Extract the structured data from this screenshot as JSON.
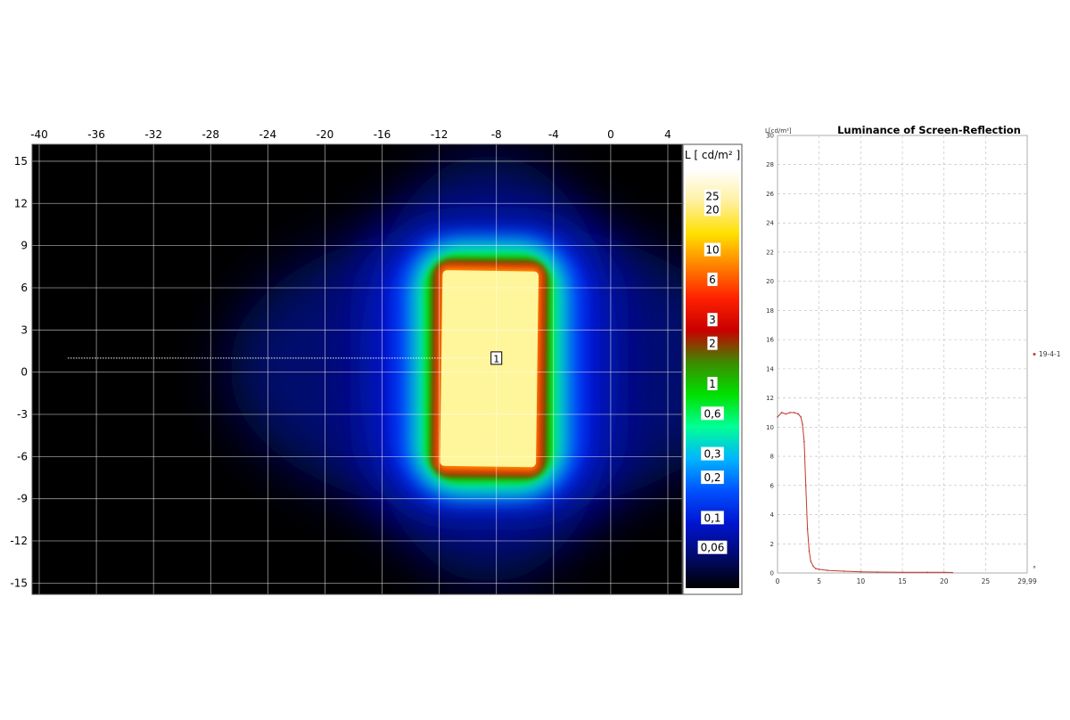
{
  "chart_data": [
    {
      "type": "heatmap",
      "x_ticks": [
        "-40",
        "-36",
        "-32",
        "-28",
        "-24",
        "-20",
        "-16",
        "-12",
        "-8",
        "-4",
        "0",
        "4"
      ],
      "y_ticks": [
        "15",
        "12",
        "9",
        "6",
        "3",
        "0",
        "-3",
        "-6",
        "-9",
        "-12",
        "-15"
      ],
      "xlim": [
        -40.5,
        5
      ],
      "ylim": [
        -15.8,
        16.2
      ],
      "grid": true,
      "bright_region": {
        "x_range": [
          -12,
          -5
        ],
        "y_range": [
          -7,
          7.5
        ]
      },
      "measurement_line": {
        "x_start": -38,
        "x_end": -8,
        "y": 1,
        "label": "1"
      },
      "colorbar": {
        "title": "L [ cd/m² ]",
        "ticks": [
          "25",
          "20",
          "10",
          "6",
          "3",
          "2",
          "1",
          "0,6",
          "0,3",
          "0,2",
          "0,1",
          "0,06"
        ],
        "tick_values": [
          25,
          20,
          10,
          6,
          3,
          2,
          1,
          0.6,
          0.3,
          0.2,
          0.1,
          0.06
        ],
        "range": [
          0.03,
          40
        ],
        "scale": "log",
        "colors": [
          "#000000",
          "#000a6e",
          "#0014d0",
          "#0050ff",
          "#00b4ff",
          "#00ff96",
          "#00e000",
          "#3c8c00",
          "#c80000",
          "#ff2000",
          "#ff8000",
          "#ffe000",
          "#fff0a0",
          "#ffffff"
        ]
      }
    },
    {
      "type": "line",
      "title": "Luminance of Screen-Reflection",
      "ylabel": "L[cd/m²]",
      "xlabel": "°",
      "x_ticks": [
        "0",
        "5",
        "10",
        "15",
        "20",
        "25",
        "29,99"
      ],
      "x_tick_values": [
        0,
        5,
        10,
        15,
        20,
        25,
        29.99
      ],
      "y_ticks": [
        "0",
        "2",
        "4",
        "6",
        "8",
        "10",
        "12",
        "14",
        "16",
        "18",
        "20",
        "22",
        "24",
        "26",
        "28",
        "30"
      ],
      "y_tick_values": [
        0,
        2,
        4,
        6,
        8,
        10,
        12,
        14,
        16,
        18,
        20,
        22,
        24,
        26,
        28,
        30
      ],
      "xlim": [
        0,
        29.99
      ],
      "ylim": [
        0,
        30
      ],
      "grid": true,
      "legend_position": "right",
      "series": [
        {
          "name": "19-4-1",
          "color": "#c0392b",
          "x": [
            0,
            0.5,
            1.0,
            1.5,
            2.0,
            2.5,
            2.8,
            3.0,
            3.2,
            3.4,
            3.6,
            3.8,
            4.0,
            4.3,
            4.6,
            5.0,
            6.0,
            8.0,
            10.0,
            12.0,
            15.0,
            18.0,
            20.0,
            21.0
          ],
          "y": [
            10.7,
            11.0,
            10.9,
            11.0,
            11.0,
            10.9,
            10.7,
            10.2,
            9.0,
            6.0,
            3.0,
            1.5,
            0.8,
            0.45,
            0.3,
            0.25,
            0.18,
            0.12,
            0.08,
            0.06,
            0.05,
            0.04,
            0.04,
            0.03
          ]
        }
      ]
    }
  ]
}
